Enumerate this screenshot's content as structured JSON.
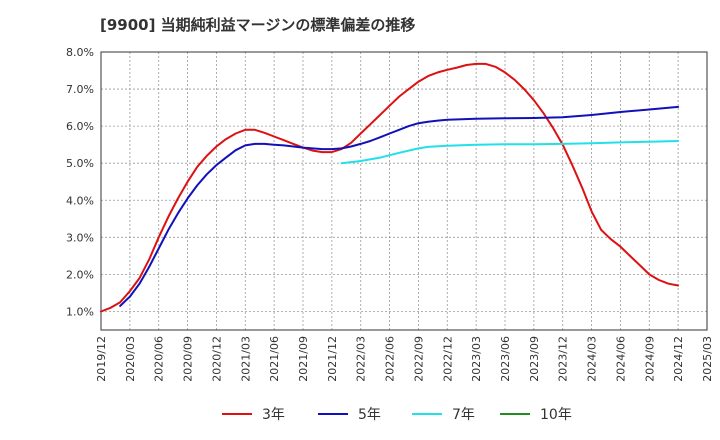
{
  "chart_data": {
    "type": "line",
    "title": "[9900]  当期純利益マージンの標準偏差の推移",
    "xlabel": "",
    "ylabel": "",
    "ylim": [
      0.5,
      8.0
    ],
    "yticks": [
      1.0,
      2.0,
      3.0,
      4.0,
      5.0,
      6.0,
      7.0,
      8.0
    ],
    "ytick_labels": [
      "1.0%",
      "2.0%",
      "3.0%",
      "4.0%",
      "5.0%",
      "6.0%",
      "7.0%",
      "8.0%"
    ],
    "x_range": [
      "2019/12",
      "2025/03"
    ],
    "xtick_labels": [
      "2019/12",
      "2020/03",
      "2020/06",
      "2020/09",
      "2020/12",
      "2021/03",
      "2021/06",
      "2021/09",
      "2021/12",
      "2022/03",
      "2022/06",
      "2022/09",
      "2022/12",
      "2023/03",
      "2023/06",
      "2023/09",
      "2023/12",
      "2024/03",
      "2024/06",
      "2024/09",
      "2024/12",
      "2025/03"
    ],
    "grid": true,
    "legend_position": "bottom",
    "series": [
      {
        "name": "3年",
        "color": "#dd1111",
        "points": [
          [
            "2019/12",
            1.0
          ],
          [
            "2020/01",
            1.1
          ],
          [
            "2020/02",
            1.25
          ],
          [
            "2020/03",
            1.55
          ],
          [
            "2020/04",
            1.9
          ],
          [
            "2020/05",
            2.4
          ],
          [
            "2020/06",
            3.0
          ],
          [
            "2020/07",
            3.55
          ],
          [
            "2020/08",
            4.05
          ],
          [
            "2020/09",
            4.5
          ],
          [
            "2020/10",
            4.9
          ],
          [
            "2020/11",
            5.2
          ],
          [
            "2020/12",
            5.45
          ],
          [
            "2021/01",
            5.65
          ],
          [
            "2021/02",
            5.8
          ],
          [
            "2021/03",
            5.9
          ],
          [
            "2021/04",
            5.9
          ],
          [
            "2021/05",
            5.82
          ],
          [
            "2021/06",
            5.72
          ],
          [
            "2021/07",
            5.62
          ],
          [
            "2021/08",
            5.52
          ],
          [
            "2021/09",
            5.42
          ],
          [
            "2021/10",
            5.34
          ],
          [
            "2021/11",
            5.3
          ],
          [
            "2021/12",
            5.3
          ],
          [
            "2022/01",
            5.38
          ],
          [
            "2022/02",
            5.55
          ],
          [
            "2022/03",
            5.8
          ],
          [
            "2022/04",
            6.05
          ],
          [
            "2022/05",
            6.3
          ],
          [
            "2022/06",
            6.55
          ],
          [
            "2022/07",
            6.8
          ],
          [
            "2022/08",
            7.0
          ],
          [
            "2022/09",
            7.2
          ],
          [
            "2022/10",
            7.35
          ],
          [
            "2022/11",
            7.45
          ],
          [
            "2022/12",
            7.52
          ],
          [
            "2023/01",
            7.58
          ],
          [
            "2023/02",
            7.65
          ],
          [
            "2023/03",
            7.68
          ],
          [
            "2023/04",
            7.68
          ],
          [
            "2023/05",
            7.6
          ],
          [
            "2023/06",
            7.45
          ],
          [
            "2023/07",
            7.25
          ],
          [
            "2023/08",
            7.0
          ],
          [
            "2023/09",
            6.7
          ],
          [
            "2023/10",
            6.35
          ],
          [
            "2023/11",
            5.95
          ],
          [
            "2023/12",
            5.5
          ],
          [
            "2024/01",
            4.95
          ],
          [
            "2024/02",
            4.35
          ],
          [
            "2024/03",
            3.7
          ],
          [
            "2024/04",
            3.2
          ],
          [
            "2024/05",
            2.95
          ],
          [
            "2024/06",
            2.75
          ],
          [
            "2024/07",
            2.5
          ],
          [
            "2024/08",
            2.25
          ],
          [
            "2024/09",
            2.0
          ],
          [
            "2024/10",
            1.85
          ],
          [
            "2024/11",
            1.75
          ],
          [
            "2024/12",
            1.7
          ]
        ]
      },
      {
        "name": "5年",
        "color": "#1111bb",
        "points": [
          [
            "2020/02",
            1.15
          ],
          [
            "2020/03",
            1.4
          ],
          [
            "2020/04",
            1.75
          ],
          [
            "2020/05",
            2.2
          ],
          [
            "2020/06",
            2.7
          ],
          [
            "2020/07",
            3.2
          ],
          [
            "2020/08",
            3.65
          ],
          [
            "2020/09",
            4.05
          ],
          [
            "2020/10",
            4.4
          ],
          [
            "2020/11",
            4.7
          ],
          [
            "2020/12",
            4.95
          ],
          [
            "2021/01",
            5.15
          ],
          [
            "2021/02",
            5.35
          ],
          [
            "2021/03",
            5.48
          ],
          [
            "2021/04",
            5.52
          ],
          [
            "2021/05",
            5.52
          ],
          [
            "2021/06",
            5.5
          ],
          [
            "2021/07",
            5.48
          ],
          [
            "2021/08",
            5.45
          ],
          [
            "2021/09",
            5.42
          ],
          [
            "2021/10",
            5.4
          ],
          [
            "2021/11",
            5.38
          ],
          [
            "2021/12",
            5.38
          ],
          [
            "2022/01",
            5.4
          ],
          [
            "2022/02",
            5.45
          ],
          [
            "2022/03",
            5.52
          ],
          [
            "2022/04",
            5.6
          ],
          [
            "2022/05",
            5.7
          ],
          [
            "2022/06",
            5.8
          ],
          [
            "2022/07",
            5.9
          ],
          [
            "2022/08",
            6.0
          ],
          [
            "2022/09",
            6.08
          ],
          [
            "2022/10",
            6.12
          ],
          [
            "2022/11",
            6.15
          ],
          [
            "2022/12",
            6.17
          ],
          [
            "2023/03",
            6.2
          ],
          [
            "2023/06",
            6.21
          ],
          [
            "2023/09",
            6.22
          ],
          [
            "2023/12",
            6.24
          ],
          [
            "2024/03",
            6.3
          ],
          [
            "2024/06",
            6.38
          ],
          [
            "2024/09",
            6.45
          ],
          [
            "2024/12",
            6.52
          ]
        ]
      },
      {
        "name": "7年",
        "color": "#22e0e8",
        "points": [
          [
            "2022/01",
            5.0
          ],
          [
            "2022/03",
            5.06
          ],
          [
            "2022/05",
            5.15
          ],
          [
            "2022/07",
            5.28
          ],
          [
            "2022/09",
            5.4
          ],
          [
            "2022/10",
            5.44
          ],
          [
            "2022/12",
            5.47
          ],
          [
            "2023/03",
            5.5
          ],
          [
            "2023/06",
            5.51
          ],
          [
            "2023/09",
            5.51
          ],
          [
            "2023/12",
            5.52
          ],
          [
            "2024/03",
            5.54
          ],
          [
            "2024/06",
            5.56
          ],
          [
            "2024/09",
            5.58
          ],
          [
            "2024/12",
            5.6
          ]
        ]
      },
      {
        "name": "10年",
        "color": "#228b22",
        "points": []
      }
    ]
  }
}
